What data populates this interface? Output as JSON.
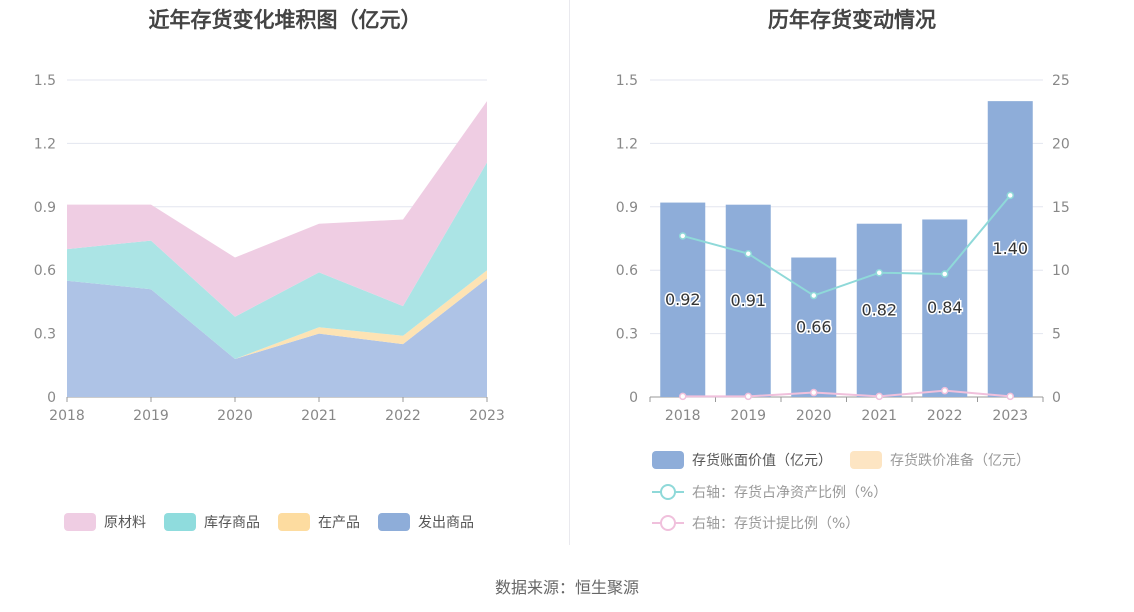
{
  "left_chart": {
    "title": "近年存货变化堆积图（亿元）",
    "legend": [
      "原材料",
      "库存商品",
      "在产品",
      "发出商品"
    ]
  },
  "right_chart": {
    "title": "历年存货变动情况",
    "legend": {
      "bar1": "存货账面价值（亿元）",
      "bar2": "存货跌价准备（亿元）",
      "line1": "右轴：存货占净资产比例（%）",
      "line2": "右轴：存货计提比例（%）"
    }
  },
  "source": "数据来源：恒生聚源",
  "colors": {
    "raw_material": "#efcde3",
    "finished_goods": "#abe4e5",
    "wip": "#fde3b4",
    "shipped": "#aec3e6",
    "bar_main": "#8eadd9",
    "bar_reserve": "#fde5c3",
    "line_ratio": "#8fd9d9",
    "line_provision": "#f0c0dc"
  },
  "chart_data": [
    {
      "type": "area",
      "stacked": true,
      "title": "近年存货变化堆积图（亿元）",
      "categories": [
        "2018",
        "2019",
        "2020",
        "2021",
        "2022",
        "2023"
      ],
      "ylim": [
        0,
        1.5
      ],
      "yticks": [
        "0",
        "0.3",
        "0.6",
        "0.9",
        "1.2",
        "1.5"
      ],
      "grid": true,
      "legend_position": "bottom",
      "series": [
        {
          "name": "发出商品",
          "values": [
            0.55,
            0.51,
            0.18,
            0.3,
            0.25,
            0.56
          ]
        },
        {
          "name": "在产品",
          "values": [
            0.0,
            0.0,
            0.0,
            0.03,
            0.04,
            0.04
          ]
        },
        {
          "name": "库存商品",
          "values": [
            0.15,
            0.23,
            0.2,
            0.26,
            0.14,
            0.51
          ]
        },
        {
          "name": "原材料",
          "values": [
            0.21,
            0.17,
            0.28,
            0.23,
            0.41,
            0.29
          ]
        }
      ]
    },
    {
      "type": "bar",
      "title": "历年存货变动情况",
      "categories": [
        "2018",
        "2019",
        "2020",
        "2021",
        "2022",
        "2023"
      ],
      "ylim": [
        0,
        1.5
      ],
      "yticks": [
        "0",
        "0.3",
        "0.6",
        "0.9",
        "1.2",
        "1.5"
      ],
      "y2lim": [
        0,
        25
      ],
      "y2ticks": [
        "0",
        "5",
        "10",
        "15",
        "20",
        "25"
      ],
      "grid": true,
      "legend_position": "bottom",
      "series": [
        {
          "name": "存货账面价值（亿元）",
          "type": "bar",
          "axis": "left",
          "values": [
            0.92,
            0.91,
            0.66,
            0.82,
            0.84,
            1.4
          ],
          "labels": [
            "0.92",
            "0.91",
            "0.66",
            "0.82",
            "0.84",
            "1.40"
          ]
        },
        {
          "name": "存货跌价准备（亿元）",
          "type": "bar",
          "axis": "left",
          "values": [
            0,
            0,
            0,
            0,
            0,
            0
          ]
        },
        {
          "name": "右轴：存货占净资产比例（%）",
          "type": "line",
          "axis": "right",
          "values": [
            12.7,
            11.3,
            8.0,
            9.8,
            9.7,
            15.9
          ]
        },
        {
          "name": "右轴：存货计提比例（%）",
          "type": "line",
          "axis": "right",
          "values": [
            0.05,
            0.05,
            0.35,
            0.05,
            0.5,
            0.05
          ]
        }
      ]
    }
  ]
}
